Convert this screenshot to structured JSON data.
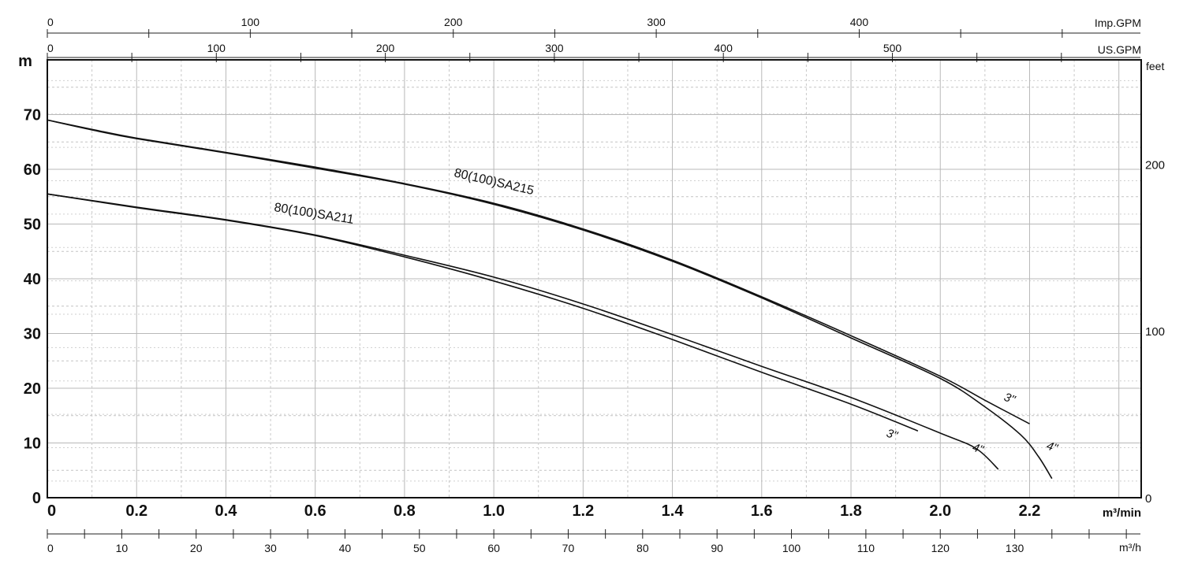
{
  "chart_data": {
    "type": "line",
    "title": "",
    "x": {
      "label": "m³/min",
      "range": [
        0,
        2.45
      ],
      "ticks": [
        "0",
        "0.2",
        "0.4",
        "0.6",
        "0.8",
        "1.0",
        "1.2",
        "1.4",
        "1.6",
        "1.8",
        "2.0",
        "2.2"
      ],
      "grid": true
    },
    "y": {
      "label": "m",
      "range": [
        0,
        80
      ],
      "ticks": [
        "0",
        "10",
        "20",
        "30",
        "40",
        "50",
        "60",
        "70"
      ],
      "grid": true
    },
    "secondary_axes": {
      "imp_gpm": {
        "label": "Imp.GPM",
        "ticks": [
          "0",
          "100",
          "200",
          "300",
          "400"
        ]
      },
      "us_gpm": {
        "label": "US.GPM",
        "ticks": [
          "0",
          "100",
          "200",
          "300",
          "400",
          "500"
        ]
      },
      "feet": {
        "label": "feet",
        "ticks": [
          "0",
          "100",
          "200"
        ]
      },
      "m3h": {
        "label": "m³/h",
        "ticks": [
          "0",
          "10",
          "20",
          "30",
          "40",
          "50",
          "60",
          "70",
          "80",
          "90",
          "100",
          "110",
          "120",
          "130"
        ]
      }
    },
    "series": [
      {
        "name": "80(100)SA215",
        "variant": "3\"",
        "points": [
          [
            0,
            69
          ],
          [
            0.1,
            67.3
          ],
          [
            0.2,
            65.7
          ],
          [
            0.4,
            63.1
          ],
          [
            0.6,
            60.4
          ],
          [
            0.8,
            57.4
          ],
          [
            1.0,
            53.8
          ],
          [
            1.2,
            49.1
          ],
          [
            1.4,
            43.4
          ],
          [
            1.6,
            36.7
          ],
          [
            1.8,
            29.6
          ],
          [
            2.0,
            22.2
          ],
          [
            2.1,
            17.8
          ],
          [
            2.2,
            13.5
          ]
        ]
      },
      {
        "name": "80(100)SA215",
        "variant": "4\"",
        "points": [
          [
            0,
            69
          ],
          [
            0.1,
            67.2
          ],
          [
            0.2,
            65.6
          ],
          [
            0.4,
            63.0
          ],
          [
            0.6,
            60.2
          ],
          [
            0.8,
            57.3
          ],
          [
            1.0,
            53.6
          ],
          [
            1.2,
            48.9
          ],
          [
            1.4,
            43.2
          ],
          [
            1.6,
            36.5
          ],
          [
            1.8,
            29.2
          ],
          [
            2.0,
            21.8
          ],
          [
            2.1,
            16.6
          ],
          [
            2.18,
            11.5
          ],
          [
            2.22,
            7.5
          ],
          [
            2.25,
            3.5
          ]
        ]
      },
      {
        "name": "80(100)SA211",
        "variant": "3\"",
        "points": [
          [
            0,
            55.5
          ],
          [
            0.2,
            53.0
          ],
          [
            0.4,
            50.7
          ],
          [
            0.6,
            47.9
          ],
          [
            0.8,
            44.0
          ],
          [
            1.0,
            39.6
          ],
          [
            1.2,
            34.6
          ],
          [
            1.4,
            28.9
          ],
          [
            1.6,
            22.9
          ],
          [
            1.8,
            17.1
          ],
          [
            1.95,
            12.2
          ]
        ]
      },
      {
        "name": "80(100)SA211",
        "variant": "4\"",
        "points": [
          [
            0,
            55.5
          ],
          [
            0.2,
            53.1
          ],
          [
            0.4,
            50.8
          ],
          [
            0.6,
            48.0
          ],
          [
            0.8,
            44.3
          ],
          [
            1.0,
            40.3
          ],
          [
            1.2,
            35.4
          ],
          [
            1.4,
            29.8
          ],
          [
            1.6,
            24.0
          ],
          [
            1.8,
            18.3
          ],
          [
            2.0,
            11.8
          ],
          [
            2.08,
            9.0
          ],
          [
            2.13,
            5.2
          ]
        ]
      }
    ],
    "legend": "none"
  },
  "labels": {
    "curve_215": "80(100)SA215",
    "curve_211": "80(100)SA211",
    "v215_3": "3\"",
    "v215_4": "4\"",
    "v211_3": "3\"",
    "v211_4": "4\""
  }
}
